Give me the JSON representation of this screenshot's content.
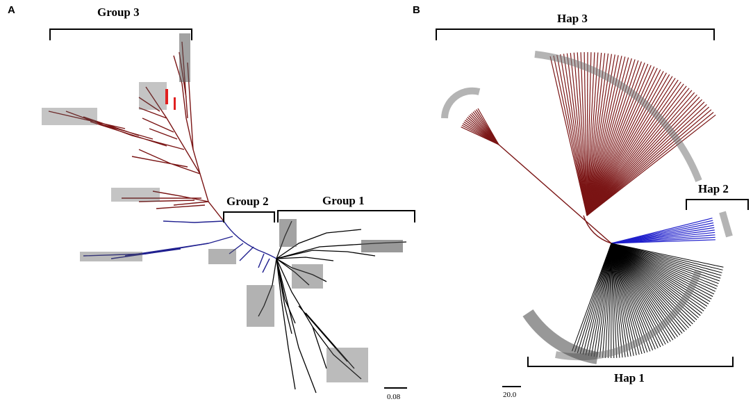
{
  "panel_a": {
    "letter": "A",
    "groups": [
      {
        "id": "group1",
        "label": "Group 1"
      },
      {
        "id": "group2",
        "label": "Group 2"
      },
      {
        "id": "group3",
        "label": "Group 3"
      }
    ],
    "scale_bar_label": "0.08"
  },
  "panel_b": {
    "letter": "B",
    "haplotypes": [
      {
        "id": "hap1",
        "label": "Hap 1"
      },
      {
        "id": "hap2",
        "label": "Hap 2"
      },
      {
        "id": "hap3",
        "label": "Hap 3"
      }
    ],
    "scale_bar_label": "20.0"
  },
  "colors": {
    "group1_branches": "#000000",
    "group2_branches": "#1f1f8f",
    "group3_branches": "#7a1414",
    "highlight_taxa": "#e02020"
  }
}
